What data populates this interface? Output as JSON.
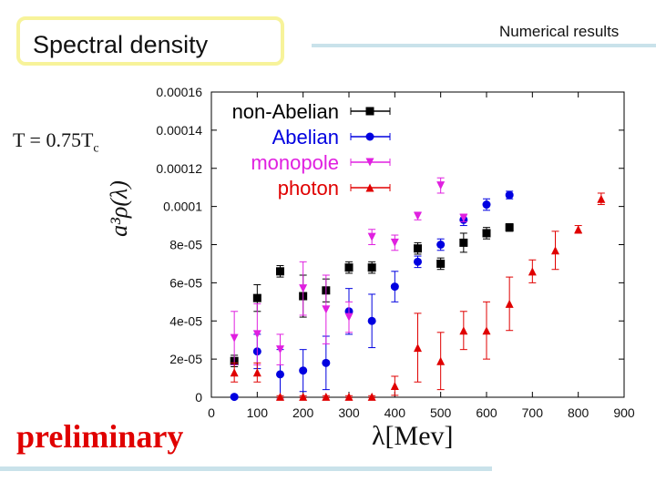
{
  "slide": {
    "title": "Spectral density",
    "section": "Numerical results",
    "temperature": "T = 0.75T",
    "temperature_sub": "c",
    "stamp": "preliminary"
  },
  "chart_data": {
    "type": "scatter",
    "title": "",
    "xlabel": "λ[Mev]",
    "ylabel": "a³ρ(λ)",
    "xlim": [
      0,
      900
    ],
    "ylim": [
      0,
      0.00016
    ],
    "xticks": [
      0,
      100,
      200,
      300,
      400,
      500,
      600,
      700,
      800,
      900
    ],
    "xtick_labels": [
      "0",
      "100",
      "200",
      "300",
      "400",
      "500",
      "600",
      "700",
      "800",
      "900"
    ],
    "yticks": [
      0,
      2e-05,
      4e-05,
      6e-05,
      8e-05,
      0.0001,
      0.00012,
      0.00014,
      0.00016
    ],
    "ytick_labels": [
      "0",
      "2e-05",
      "4e-05",
      "6e-05",
      "8e-05",
      "0.0001",
      "0.00012",
      "0.00014",
      "0.00016"
    ],
    "legend_position": "top-left",
    "series": [
      {
        "name": "non-Abelian",
        "color": "#000000",
        "marker": "square",
        "x": [
          50,
          100,
          150,
          200,
          250,
          300,
          350,
          450,
          500,
          550,
          600,
          650
        ],
        "y": [
          1.9e-05,
          5.2e-05,
          6.6e-05,
          5.3e-05,
          5.6e-05,
          6.8e-05,
          6.8e-05,
          7.8e-05,
          7e-05,
          8.1e-05,
          8.6e-05,
          8.9e-05
        ],
        "err": [
          3e-06,
          7e-06,
          3e-06,
          1.1e-05,
          6e-06,
          3e-06,
          3e-06,
          3e-06,
          3e-06,
          5e-06,
          3e-06,
          2e-06
        ]
      },
      {
        "name": "Abelian",
        "color": "#0000e0",
        "marker": "circle",
        "x": [
          50,
          100,
          150,
          200,
          250,
          300,
          350,
          400,
          450,
          500,
          550,
          600,
          650
        ],
        "y": [
          2e-07,
          2.4e-05,
          1.2e-05,
          1.4e-05,
          1.8e-05,
          4.5e-05,
          4e-05,
          5.8e-05,
          7.1e-05,
          8e-05,
          9.3e-05,
          0.000101,
          0.000106
        ],
        "err": [
          5e-07,
          9e-06,
          1.3e-05,
          1.1e-05,
          1.4e-05,
          1.2e-05,
          1.4e-05,
          8e-06,
          3e-06,
          3e-06,
          3e-06,
          3e-06,
          2e-06
        ]
      },
      {
        "name": "monopole",
        "color": "#e020e0",
        "marker": "triangle-down",
        "x": [
          50,
          100,
          150,
          200,
          250,
          300,
          350,
          400,
          450,
          500,
          550
        ],
        "y": [
          3.1e-05,
          3.3e-05,
          2.5e-05,
          5.7e-05,
          4.6e-05,
          4.2e-05,
          8.4e-05,
          8.1e-05,
          9.5e-05,
          0.000111,
          9.4e-05
        ],
        "err": [
          1.4e-05,
          1.6e-05,
          8e-06,
          1.4e-05,
          1.8e-05,
          8e-06,
          4e-06,
          4e-06,
          2e-06,
          4e-06,
          2e-06
        ]
      },
      {
        "name": "photon",
        "color": "#e00000",
        "marker": "triangle",
        "x": [
          50,
          100,
          150,
          200,
          250,
          300,
          350,
          400,
          450,
          500,
          550,
          600,
          650,
          700,
          750,
          800,
          850
        ],
        "y": [
          1.3e-05,
          1.3e-05,
          3e-07,
          3e-07,
          3e-07,
          3e-07,
          3e-07,
          6e-06,
          2.6e-05,
          1.9e-05,
          3.5e-05,
          3.5e-05,
          4.9e-05,
          6.6e-05,
          7.7e-05,
          8.8e-05,
          0.000104
        ],
        "err": [
          5e-06,
          5e-06,
          5e-07,
          5e-07,
          5e-07,
          5e-07,
          5e-07,
          5e-06,
          1.8e-05,
          1.5e-05,
          1e-05,
          1.5e-05,
          1.4e-05,
          6e-06,
          1e-05,
          2e-06,
          3e-06
        ]
      }
    ]
  }
}
